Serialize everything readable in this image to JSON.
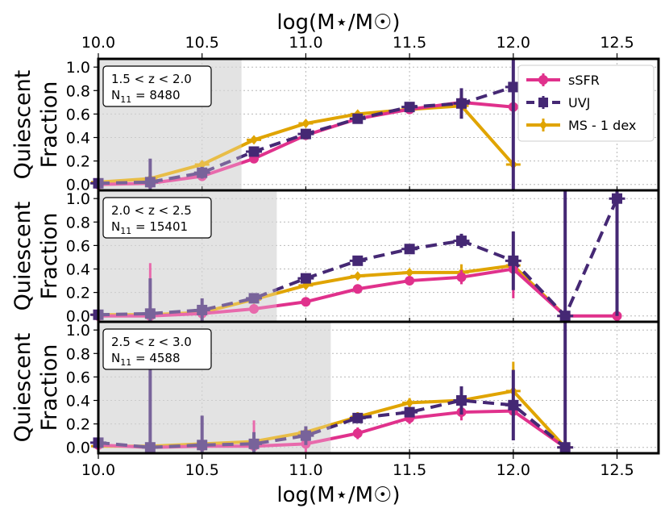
{
  "figure": {
    "top_axis_label": "log(M⋆/M☉)",
    "bottom_axis_label": "log(M⋆/M☉)"
  },
  "colors": {
    "sSFR": "#e0318c",
    "UVJ": "#452874",
    "MS": "#e0a400",
    "shade": "#d9d9d9",
    "grid": "#b8b8b8"
  },
  "legend": {
    "placement": "top-right of top panel",
    "entries": [
      {
        "key": "sSFR",
        "label": "sSFR",
        "style": "solid-circle"
      },
      {
        "key": "UVJ",
        "label": "UVJ",
        "style": "dashed-square"
      },
      {
        "key": "MS",
        "label": "MS - 1 dex",
        "style": "solid-diamond"
      }
    ]
  },
  "chart_data": {
    "type": "line",
    "xlim": [
      10.0,
      12.7
    ],
    "ylim": [
      -0.05,
      1.07
    ],
    "x_ticks": [
      "10.0",
      "10.5",
      "11.0",
      "11.5",
      "12.0",
      "12.5"
    ],
    "x_tick_values": [
      10.0,
      10.5,
      11.0,
      11.5,
      12.0,
      12.5
    ],
    "y_ticks": [
      "0.0",
      "0.2",
      "0.4",
      "0.6",
      "0.8",
      "1.0"
    ],
    "y_tick_values": [
      0.0,
      0.2,
      0.4,
      0.6,
      0.8,
      1.0
    ],
    "ylabel_line1": "Quiescent",
    "ylabel_line2": "Fraction",
    "grid": true,
    "panels": [
      {
        "redshift_label": "1.5 < z < 2.0",
        "n_prefix": "N",
        "n_sub": "11",
        "n_suffix": " = 8480",
        "shade_until": 10.69,
        "series": {
          "sSFR": {
            "x": [
              10.0,
              10.25,
              10.5,
              10.75,
              11.0,
              11.25,
              11.5,
              11.75,
              12.0
            ],
            "y": [
              0.0,
              0.01,
              0.07,
              0.22,
              0.42,
              0.56,
              0.64,
              0.7,
              0.66
            ],
            "err": [
              0.02,
              0.12,
              0.04,
              0.02,
              0.02,
              0.02,
              0.03,
              0.05,
              0.06
            ]
          },
          "UVJ": {
            "x": [
              10.0,
              10.25,
              10.5,
              10.75,
              11.0,
              11.25,
              11.5,
              11.75,
              12.0
            ],
            "y": [
              0.01,
              0.02,
              0.1,
              0.28,
              0.43,
              0.56,
              0.66,
              0.69,
              0.83
            ],
            "err": [
              0.02,
              0.2,
              0.05,
              0.03,
              0.02,
              0.02,
              0.03,
              0.13,
              0.9
            ]
          },
          "MS": {
            "x": [
              10.0,
              10.25,
              10.5,
              10.75,
              11.0,
              11.25,
              11.5,
              11.75,
              12.0
            ],
            "y": [
              0.02,
              0.05,
              0.17,
              0.38,
              0.52,
              0.6,
              0.64,
              0.67,
              0.17
            ],
            "err": [
              0.02,
              0.05,
              0.03,
              0.02,
              0.02,
              0.02,
              0.03,
              0.08,
              0.22
            ]
          }
        }
      },
      {
        "redshift_label": "2.0 < z < 2.5",
        "n_prefix": "N",
        "n_sub": "11",
        "n_suffix": " = 15401",
        "shade_until": 10.86,
        "series": {
          "sSFR": {
            "x": [
              10.0,
              10.25,
              10.5,
              10.75,
              11.0,
              11.25,
              11.5,
              11.75,
              12.0,
              12.25,
              12.5
            ],
            "y": [
              0.0,
              0.0,
              0.02,
              0.06,
              0.12,
              0.23,
              0.3,
              0.33,
              0.4,
              0.0,
              0.0
            ],
            "err": [
              0.02,
              0.45,
              0.05,
              0.02,
              0.02,
              0.02,
              0.03,
              0.06,
              0.25,
              0.02,
              0.02
            ]
          },
          "UVJ": {
            "x": [
              10.0,
              10.25,
              10.5,
              10.75,
              11.0,
              11.25,
              11.5,
              11.75,
              12.0,
              12.25,
              12.5
            ],
            "y": [
              0.01,
              0.02,
              0.05,
              0.15,
              0.32,
              0.47,
              0.57,
              0.64,
              0.47,
              0.0,
              1.0
            ],
            "err": [
              0.02,
              0.3,
              0.1,
              0.03,
              0.03,
              0.03,
              0.03,
              0.06,
              0.25,
              1.1,
              1.0
            ]
          },
          "MS": {
            "x": [
              10.0,
              10.25,
              10.5,
              10.75,
              11.0,
              11.25,
              11.5,
              11.75,
              12.0,
              12.25
            ],
            "y": [
              0.01,
              0.01,
              0.03,
              0.14,
              0.26,
              0.34,
              0.37,
              0.37,
              0.43,
              0.0
            ],
            "err": [
              0.02,
              0.05,
              0.04,
              0.02,
              0.02,
              0.02,
              0.03,
              0.07,
              0.1,
              0.02
            ]
          }
        }
      },
      {
        "redshift_label": "2.5 < z < 3.0",
        "n_prefix": "N",
        "n_sub": "11",
        "n_suffix": " = 4588",
        "shade_until": 11.12,
        "series": {
          "sSFR": {
            "x": [
              10.0,
              10.25,
              10.5,
              10.75,
              11.0,
              11.25,
              11.5,
              11.75,
              12.0,
              12.25
            ],
            "y": [
              0.02,
              0.0,
              0.01,
              0.01,
              0.03,
              0.12,
              0.25,
              0.3,
              0.31,
              0.0
            ],
            "err": [
              0.02,
              0.75,
              0.25,
              0.22,
              0.08,
              0.05,
              0.05,
              0.07,
              0.15,
              0.02
            ]
          },
          "UVJ": {
            "x": [
              10.0,
              10.25,
              10.5,
              10.75,
              11.0,
              11.25,
              11.5,
              11.75,
              12.0,
              12.25
            ],
            "y": [
              0.04,
              0.0,
              0.02,
              0.03,
              0.1,
              0.25,
              0.3,
              0.4,
              0.36,
              0.0
            ],
            "err": [
              0.02,
              0.75,
              0.25,
              0.1,
              0.08,
              0.04,
              0.04,
              0.12,
              0.3,
              1.2
            ]
          },
          "MS": {
            "x": [
              10.0,
              10.25,
              10.5,
              10.75,
              11.0,
              11.25,
              11.5,
              11.75,
              12.0,
              12.25
            ],
            "y": [
              0.01,
              0.01,
              0.03,
              0.05,
              0.13,
              0.26,
              0.38,
              0.4,
              0.48,
              0.0
            ],
            "err": [
              0.02,
              0.05,
              0.05,
              0.04,
              0.04,
              0.04,
              0.04,
              0.06,
              0.25,
              0.02
            ]
          }
        }
      }
    ]
  }
}
